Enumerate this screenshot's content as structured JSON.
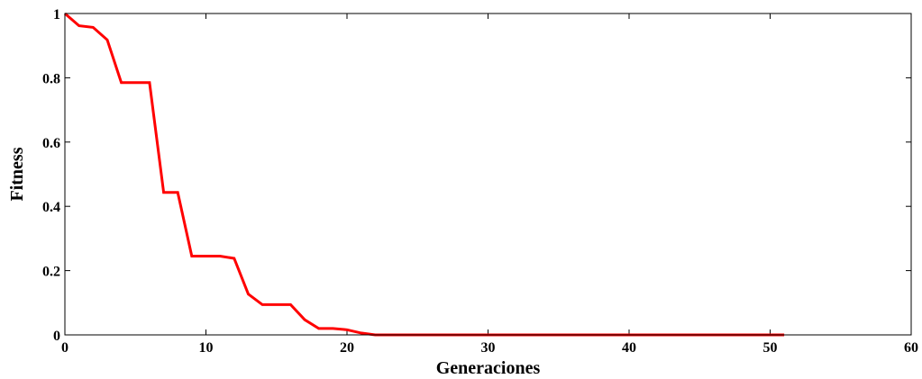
{
  "chart_data": {
    "type": "line",
    "title": "",
    "xlabel": "Generaciones",
    "ylabel": "Fitness",
    "xlim": [
      0,
      60
    ],
    "ylim": [
      0,
      1
    ],
    "xticks": [
      0,
      10,
      20,
      30,
      40,
      50,
      60
    ],
    "yticks": [
      0,
      0.2,
      0.4,
      0.6,
      0.8,
      1
    ],
    "ytick_labels": [
      "0",
      "0.2",
      "0.4",
      "0.6",
      "0.8",
      "1"
    ],
    "grid": false,
    "series": [
      {
        "color": "#ff0000",
        "x": [
          0,
          1,
          2,
          3,
          4,
          5,
          6,
          7,
          8,
          9,
          10,
          11,
          12,
          13,
          14,
          15,
          16,
          17,
          18,
          19,
          20,
          21,
          22,
          23,
          24,
          25,
          26,
          27,
          28,
          29,
          30,
          31,
          32,
          33,
          34,
          35,
          36,
          37,
          38,
          39,
          40,
          41,
          42,
          43,
          44,
          45,
          46,
          47,
          48,
          49,
          50,
          51
        ],
        "y": [
          1.0,
          0.962,
          0.957,
          0.918,
          0.785,
          0.785,
          0.785,
          0.443,
          0.443,
          0.245,
          0.245,
          0.245,
          0.238,
          0.127,
          0.094,
          0.094,
          0.094,
          0.047,
          0.02,
          0.02,
          0.016,
          0.006,
          0.0,
          0.0,
          0.0,
          0.0,
          0.0,
          0.0,
          0.0,
          0.0,
          0.0,
          0.0,
          0.0,
          0.0,
          0.0,
          0.0,
          0.0,
          0.0,
          0.0,
          0.0,
          0.0,
          0.0,
          0.0,
          0.0,
          0.0,
          0.0,
          0.0,
          0.0,
          0.0,
          0.0,
          0.0,
          0.0
        ]
      }
    ]
  }
}
